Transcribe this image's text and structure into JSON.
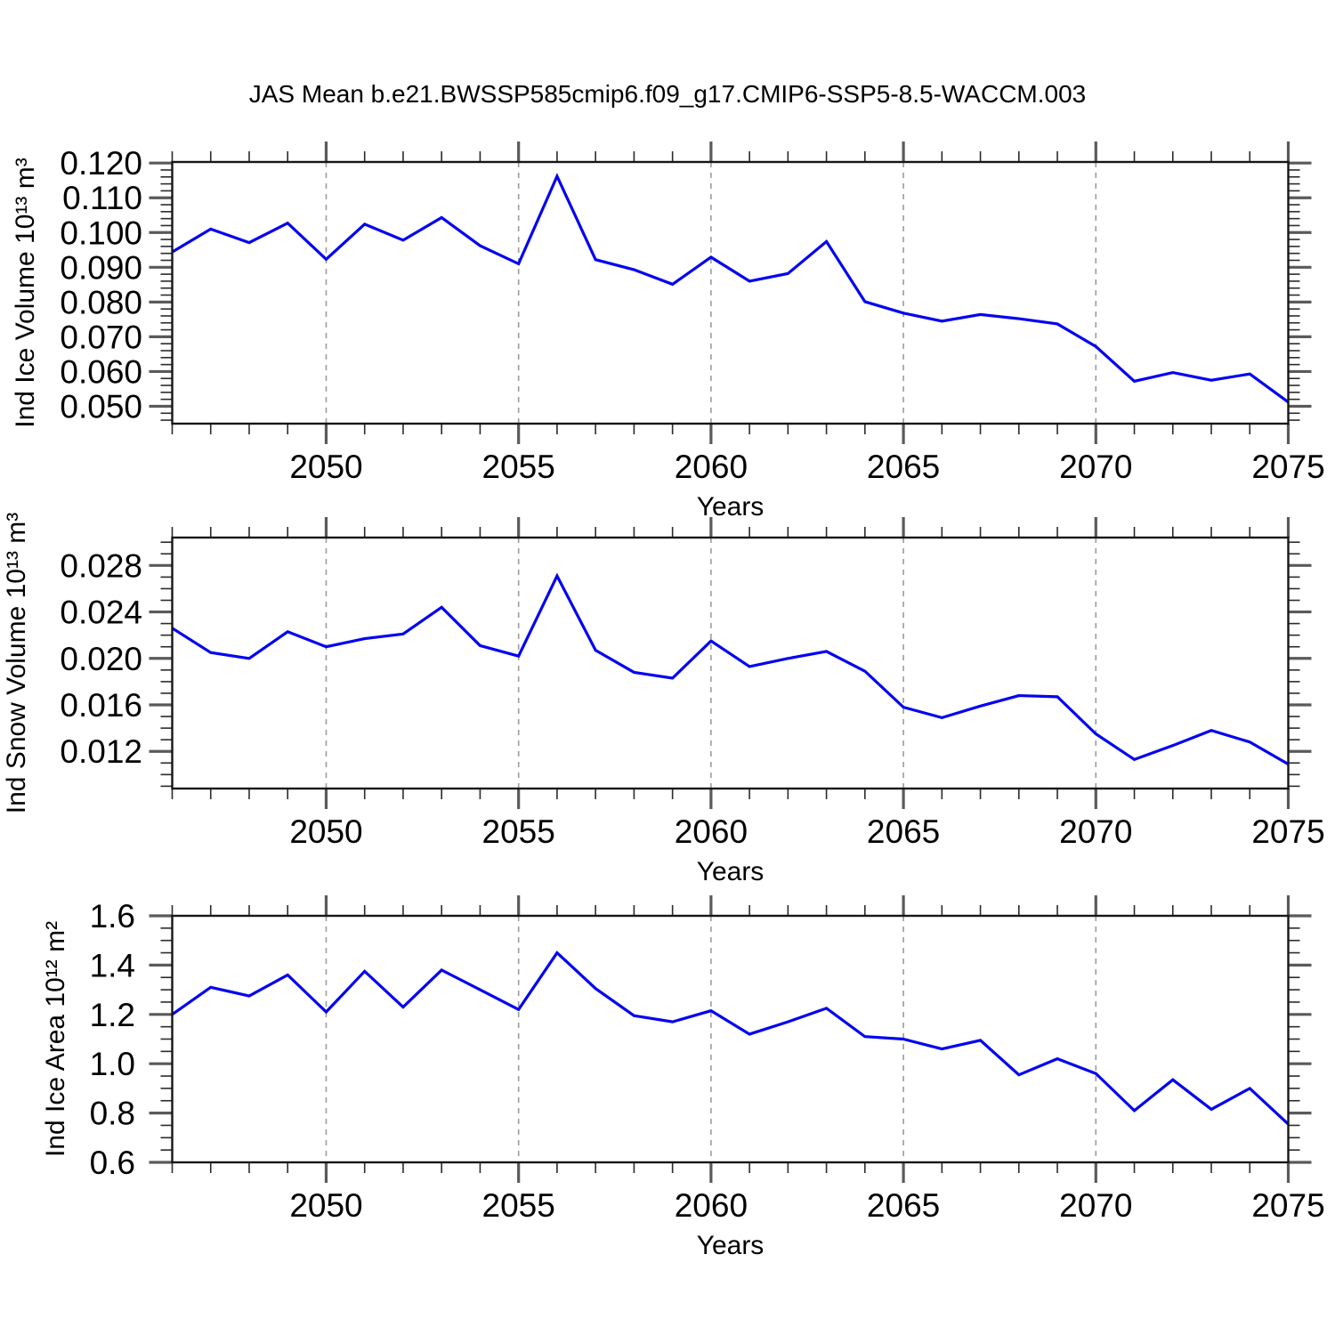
{
  "title": "JAS Mean b.e21.BWSSP585cmip6.f09_g17.CMIP6-SSP5-8.5-WACCM.003",
  "colors": {
    "line": "#0202f2",
    "frame": "#161616",
    "grid": "#9c9c9c",
    "major_tick": "#5a5a5a",
    "minor_tick": "#2b2b2b",
    "background": "#ffffff"
  },
  "chart_data": [
    {
      "type": "line",
      "ylabel": "Ind Ice Volume 10¹³ m³",
      "xlabel": "Years",
      "x": [
        2046,
        2047,
        2048,
        2049,
        2050,
        2051,
        2052,
        2053,
        2054,
        2055,
        2056,
        2057,
        2058,
        2059,
        2060,
        2061,
        2062,
        2063,
        2064,
        2065,
        2066,
        2067,
        2068,
        2069,
        2070,
        2071,
        2072,
        2073,
        2074,
        2075
      ],
      "values": [
        0.0944,
        0.101,
        0.0971,
        0.1027,
        0.0923,
        0.1024,
        0.0978,
        0.1043,
        0.0962,
        0.091,
        0.1162,
        0.0922,
        0.0893,
        0.0851,
        0.0929,
        0.086,
        0.0882,
        0.0974,
        0.0801,
        0.0768,
        0.0745,
        0.0764,
        0.0752,
        0.0737,
        0.0672,
        0.0572,
        0.0597,
        0.0575,
        0.0593,
        0.0512
      ],
      "xlim": [
        2046,
        2075
      ],
      "ylim": [
        0.045,
        0.1203
      ],
      "yticks": [
        0.05,
        0.06,
        0.07,
        0.08,
        0.09,
        0.1,
        0.11,
        0.12
      ],
      "ytick_labels": [
        "0.050",
        "0.060",
        "0.070",
        "0.080",
        "0.090",
        "0.100",
        "0.110",
        "0.120"
      ],
      "yminor_step": 0.002,
      "xticks": [
        2050,
        2055,
        2060,
        2065,
        2070,
        2075
      ],
      "xtick_labels": [
        "2050",
        "2055",
        "2060",
        "2065",
        "2070",
        "2075"
      ],
      "xminor_step": 1,
      "gridline_years": [
        2050,
        2055,
        2060,
        2065,
        2070
      ],
      "grid": "vertical-dashed",
      "legend": "none"
    },
    {
      "type": "line",
      "ylabel": "Ind Snow Volume 10¹³ m³",
      "xlabel": "Years",
      "x": [
        2046,
        2047,
        2048,
        2049,
        2050,
        2051,
        2052,
        2053,
        2054,
        2055,
        2056,
        2057,
        2058,
        2059,
        2060,
        2061,
        2062,
        2063,
        2064,
        2065,
        2066,
        2067,
        2068,
        2069,
        2070,
        2071,
        2072,
        2073,
        2074,
        2075
      ],
      "values": [
        0.0226,
        0.0205,
        0.02,
        0.0223,
        0.021,
        0.0217,
        0.0221,
        0.0244,
        0.0211,
        0.0202,
        0.0271,
        0.0207,
        0.0188,
        0.0183,
        0.0215,
        0.0193,
        0.02,
        0.0206,
        0.0189,
        0.0158,
        0.0149,
        0.0159,
        0.0168,
        0.0167,
        0.0135,
        0.0113,
        0.0125,
        0.0138,
        0.0128,
        0.0109
      ],
      "xlim": [
        2046,
        2075
      ],
      "ylim": [
        0.0088,
        0.0304
      ],
      "yticks": [
        0.012,
        0.016,
        0.02,
        0.024,
        0.028
      ],
      "ytick_labels": [
        "0.012",
        "0.016",
        "0.020",
        "0.024",
        "0.028"
      ],
      "yminor_step": 0.001,
      "xticks": [
        2050,
        2055,
        2060,
        2065,
        2070,
        2075
      ],
      "xtick_labels": [
        "2050",
        "2055",
        "2060",
        "2065",
        "2070",
        "2075"
      ],
      "xminor_step": 1,
      "gridline_years": [
        2050,
        2055,
        2060,
        2065,
        2070
      ],
      "grid": "vertical-dashed",
      "legend": "none"
    },
    {
      "type": "line",
      "ylabel": "Ind Ice Area 10¹² m²",
      "xlabel": "Years",
      "x": [
        2046,
        2047,
        2048,
        2049,
        2050,
        2051,
        2052,
        2053,
        2054,
        2055,
        2056,
        2057,
        2058,
        2059,
        2060,
        2061,
        2062,
        2063,
        2064,
        2065,
        2066,
        2067,
        2068,
        2069,
        2070,
        2071,
        2072,
        2073,
        2074,
        2075
      ],
      "values": [
        1.2,
        1.31,
        1.275,
        1.36,
        1.21,
        1.375,
        1.23,
        1.38,
        1.3,
        1.22,
        1.45,
        1.305,
        1.195,
        1.17,
        1.215,
        1.12,
        1.17,
        1.225,
        1.11,
        1.1,
        1.06,
        1.095,
        0.955,
        1.02,
        0.96,
        0.81,
        0.935,
        0.815,
        0.9,
        0.755
      ],
      "xlim": [
        2046,
        2075
      ],
      "ylim": [
        0.6,
        1.6
      ],
      "yticks": [
        0.6,
        0.8,
        1.0,
        1.2,
        1.4,
        1.6
      ],
      "ytick_labels": [
        "0.6",
        "0.8",
        "1.0",
        "1.2",
        "1.4",
        "1.6"
      ],
      "yminor_step": 0.05,
      "xticks": [
        2050,
        2055,
        2060,
        2065,
        2070,
        2075
      ],
      "xtick_labels": [
        "2050",
        "2055",
        "2060",
        "2065",
        "2070",
        "2075"
      ],
      "xminor_step": 1,
      "gridline_years": [
        2050,
        2055,
        2060,
        2065,
        2070
      ],
      "grid": "vertical-dashed",
      "legend": "none"
    }
  ]
}
